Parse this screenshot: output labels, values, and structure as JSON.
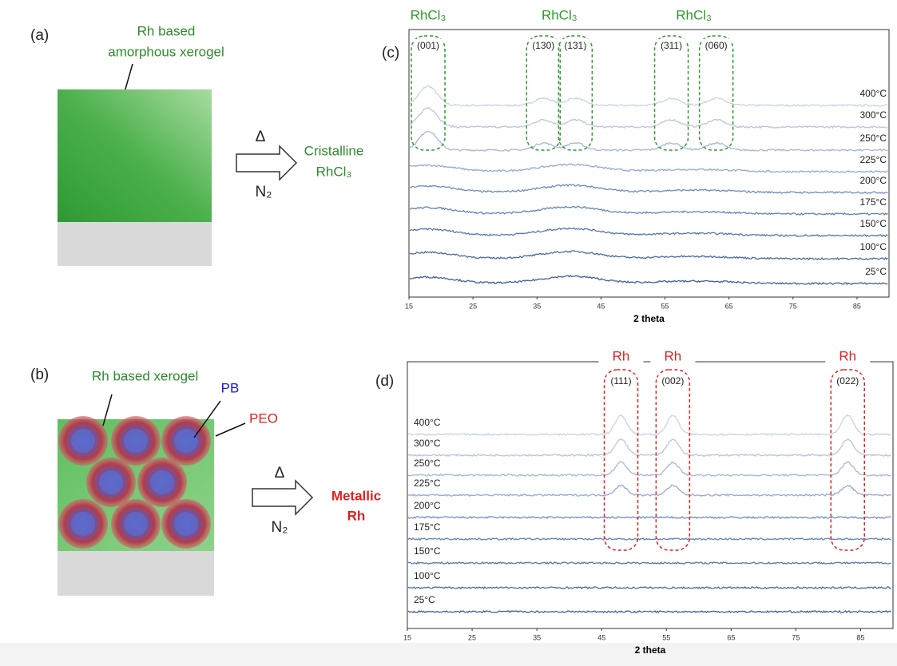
{
  "scheme": {
    "a": {
      "label": "(a)",
      "caption": [
        "Rh based",
        "amorphous xerogel"
      ],
      "arrow_top": "Δ",
      "arrow_bottom": "N₂",
      "product": [
        "Cristalline",
        "RhCl₃"
      ]
    },
    "b": {
      "label": "(b)",
      "caption": "Rh based xerogel",
      "core": "PB",
      "corona": "PEO",
      "arrow_top": "Δ",
      "arrow_bottom": "N₂",
      "product": [
        "Metallic",
        "Rh"
      ]
    }
  },
  "chart_data": [
    {
      "type": "line",
      "panel": "(c)",
      "x_label": "2 theta",
      "xlim": [
        15,
        90
      ],
      "xticks": [
        15,
        25,
        35,
        45,
        55,
        65,
        75,
        85
      ],
      "categories": [
        "400°C",
        "300°C",
        "250°C",
        "225°C",
        "200°C",
        "175°C",
        "150°C",
        "100°C",
        "25°C"
      ],
      "phase": "RhCl₃",
      "color": "#2e9a2e",
      "reflections": [
        {
          "label": "(001)",
          "x": 18
        },
        {
          "label": "(130)",
          "x": 36
        },
        {
          "label": "(131)",
          "x": 41
        },
        {
          "label": "(311)",
          "x": 56
        },
        {
          "label": "(060)",
          "x": 63
        }
      ]
    },
    {
      "type": "line",
      "panel": "(d)",
      "x_label": "2 theta",
      "xlim": [
        15,
        90
      ],
      "xticks": [
        15,
        25,
        35,
        45,
        55,
        65,
        75,
        85
      ],
      "categories": [
        "400°C",
        "300°C",
        "250°C",
        "225°C",
        "200°C",
        "175°C",
        "150°C",
        "100°C",
        "25°C"
      ],
      "phase": "Rh",
      "color": "#e02020",
      "reflections": [
        {
          "label": "(111)",
          "x": 48
        },
        {
          "label": "(002)",
          "x": 56
        },
        {
          "label": "(022)",
          "x": 83
        }
      ]
    }
  ]
}
